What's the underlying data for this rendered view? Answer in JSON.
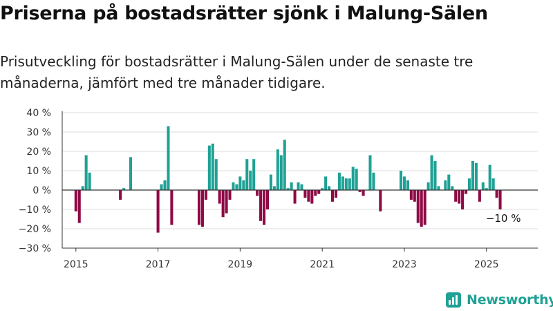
{
  "title": "Priserna på bostadsrätter sjönk i Malung-Sälen",
  "subtitle": "Prisutveckling för bostadsrätter i Malung-Sälen under de senaste tre månaderna, jämfört med tre månader tidigare.",
  "brand": "Newsworthy",
  "colors": {
    "positive": "#1fa195",
    "negative": "#8e0a45",
    "grid": "#dddddd",
    "axis": "#333333"
  },
  "chart_data": {
    "type": "bar",
    "title": "Priserna på bostadsrätter sjönk i Malung-Sälen",
    "ylim": [
      -30,
      40
    ],
    "xlim": [
      "2014-09",
      "2026-04"
    ],
    "yticks": [
      -30,
      -20,
      -10,
      0,
      10,
      20,
      30,
      40
    ],
    "ytick_labels": [
      "−30 %",
      "−20 %",
      "−10 %",
      "0 %",
      "10 %",
      "20 %",
      "30 %",
      "40 %"
    ],
    "xticks": [
      "2015-01",
      "2017-01",
      "2019-01",
      "2021-01",
      "2023-01",
      "2025-01"
    ],
    "xtick_labels": [
      "2015",
      "2017",
      "2019",
      "2021",
      "2023",
      "2025"
    ],
    "grid": true,
    "annotation": {
      "month": "2025-06",
      "value": -10,
      "text": "−10 %"
    },
    "series": [
      {
        "values": [
          [
            "2015-01",
            -11
          ],
          [
            "2015-02",
            -17
          ],
          [
            "2015-03",
            2
          ],
          [
            "2015-04",
            18
          ],
          [
            "2015-05",
            9
          ],
          [
            "2016-02",
            -5
          ],
          [
            "2016-03",
            1
          ],
          [
            "2016-05",
            17
          ],
          [
            "2017-01",
            -22
          ],
          [
            "2017-02",
            3
          ],
          [
            "2017-03",
            5
          ],
          [
            "2017-04",
            33
          ],
          [
            "2017-05",
            -18
          ],
          [
            "2018-01",
            -18
          ],
          [
            "2018-02",
            -19
          ],
          [
            "2018-03",
            -5
          ],
          [
            "2018-04",
            23
          ],
          [
            "2018-05",
            24
          ],
          [
            "2018-06",
            16
          ],
          [
            "2018-07",
            -7
          ],
          [
            "2018-08",
            -14
          ],
          [
            "2018-09",
            -12
          ],
          [
            "2018-10",
            -5
          ],
          [
            "2018-11",
            4
          ],
          [
            "2018-12",
            3
          ],
          [
            "2019-01",
            7
          ],
          [
            "2019-02",
            5
          ],
          [
            "2019-03",
            16
          ],
          [
            "2019-04",
            10
          ],
          [
            "2019-05",
            16
          ],
          [
            "2019-06",
            -3
          ],
          [
            "2019-07",
            -16
          ],
          [
            "2019-08",
            -18
          ],
          [
            "2019-09",
            -10
          ],
          [
            "2019-10",
            8
          ],
          [
            "2019-11",
            2
          ],
          [
            "2019-12",
            21
          ],
          [
            "2020-01",
            18
          ],
          [
            "2020-02",
            26
          ],
          [
            "2020-03",
            1
          ],
          [
            "2020-04",
            4
          ],
          [
            "2020-05",
            -7
          ],
          [
            "2020-06",
            4
          ],
          [
            "2020-07",
            3
          ],
          [
            "2020-08",
            -4
          ],
          [
            "2020-09",
            -6
          ],
          [
            "2020-10",
            -7
          ],
          [
            "2020-11",
            -3
          ],
          [
            "2020-12",
            -2
          ],
          [
            "2021-01",
            1
          ],
          [
            "2021-02",
            7
          ],
          [
            "2021-03",
            2
          ],
          [
            "2021-04",
            -6
          ],
          [
            "2021-05",
            -4
          ],
          [
            "2021-06",
            9
          ],
          [
            "2021-07",
            7
          ],
          [
            "2021-08",
            6
          ],
          [
            "2021-09",
            6
          ],
          [
            "2021-10",
            12
          ],
          [
            "2021-11",
            11
          ],
          [
            "2021-12",
            -1
          ],
          [
            "2022-01",
            -3
          ],
          [
            "2022-03",
            18
          ],
          [
            "2022-04",
            9
          ],
          [
            "2022-06",
            -11
          ],
          [
            "2022-12",
            10
          ],
          [
            "2023-01",
            7
          ],
          [
            "2023-02",
            5
          ],
          [
            "2023-03",
            -5
          ],
          [
            "2023-04",
            -6
          ],
          [
            "2023-05",
            -17
          ],
          [
            "2023-06",
            -19
          ],
          [
            "2023-07",
            -18
          ],
          [
            "2023-08",
            4
          ],
          [
            "2023-09",
            18
          ],
          [
            "2023-10",
            15
          ],
          [
            "2023-11",
            2
          ],
          [
            "2024-01",
            5
          ],
          [
            "2024-02",
            8
          ],
          [
            "2024-03",
            2
          ],
          [
            "2024-04",
            -6
          ],
          [
            "2024-05",
            -7
          ],
          [
            "2024-06",
            -10
          ],
          [
            "2024-07",
            -2
          ],
          [
            "2024-08",
            6
          ],
          [
            "2024-09",
            15
          ],
          [
            "2024-10",
            14
          ],
          [
            "2024-11",
            -6
          ],
          [
            "2024-12",
            4
          ],
          [
            "2025-01",
            1
          ],
          [
            "2025-02",
            13
          ],
          [
            "2025-03",
            6
          ],
          [
            "2025-04",
            -4
          ],
          [
            "2025-05",
            -10
          ]
        ]
      }
    ]
  }
}
